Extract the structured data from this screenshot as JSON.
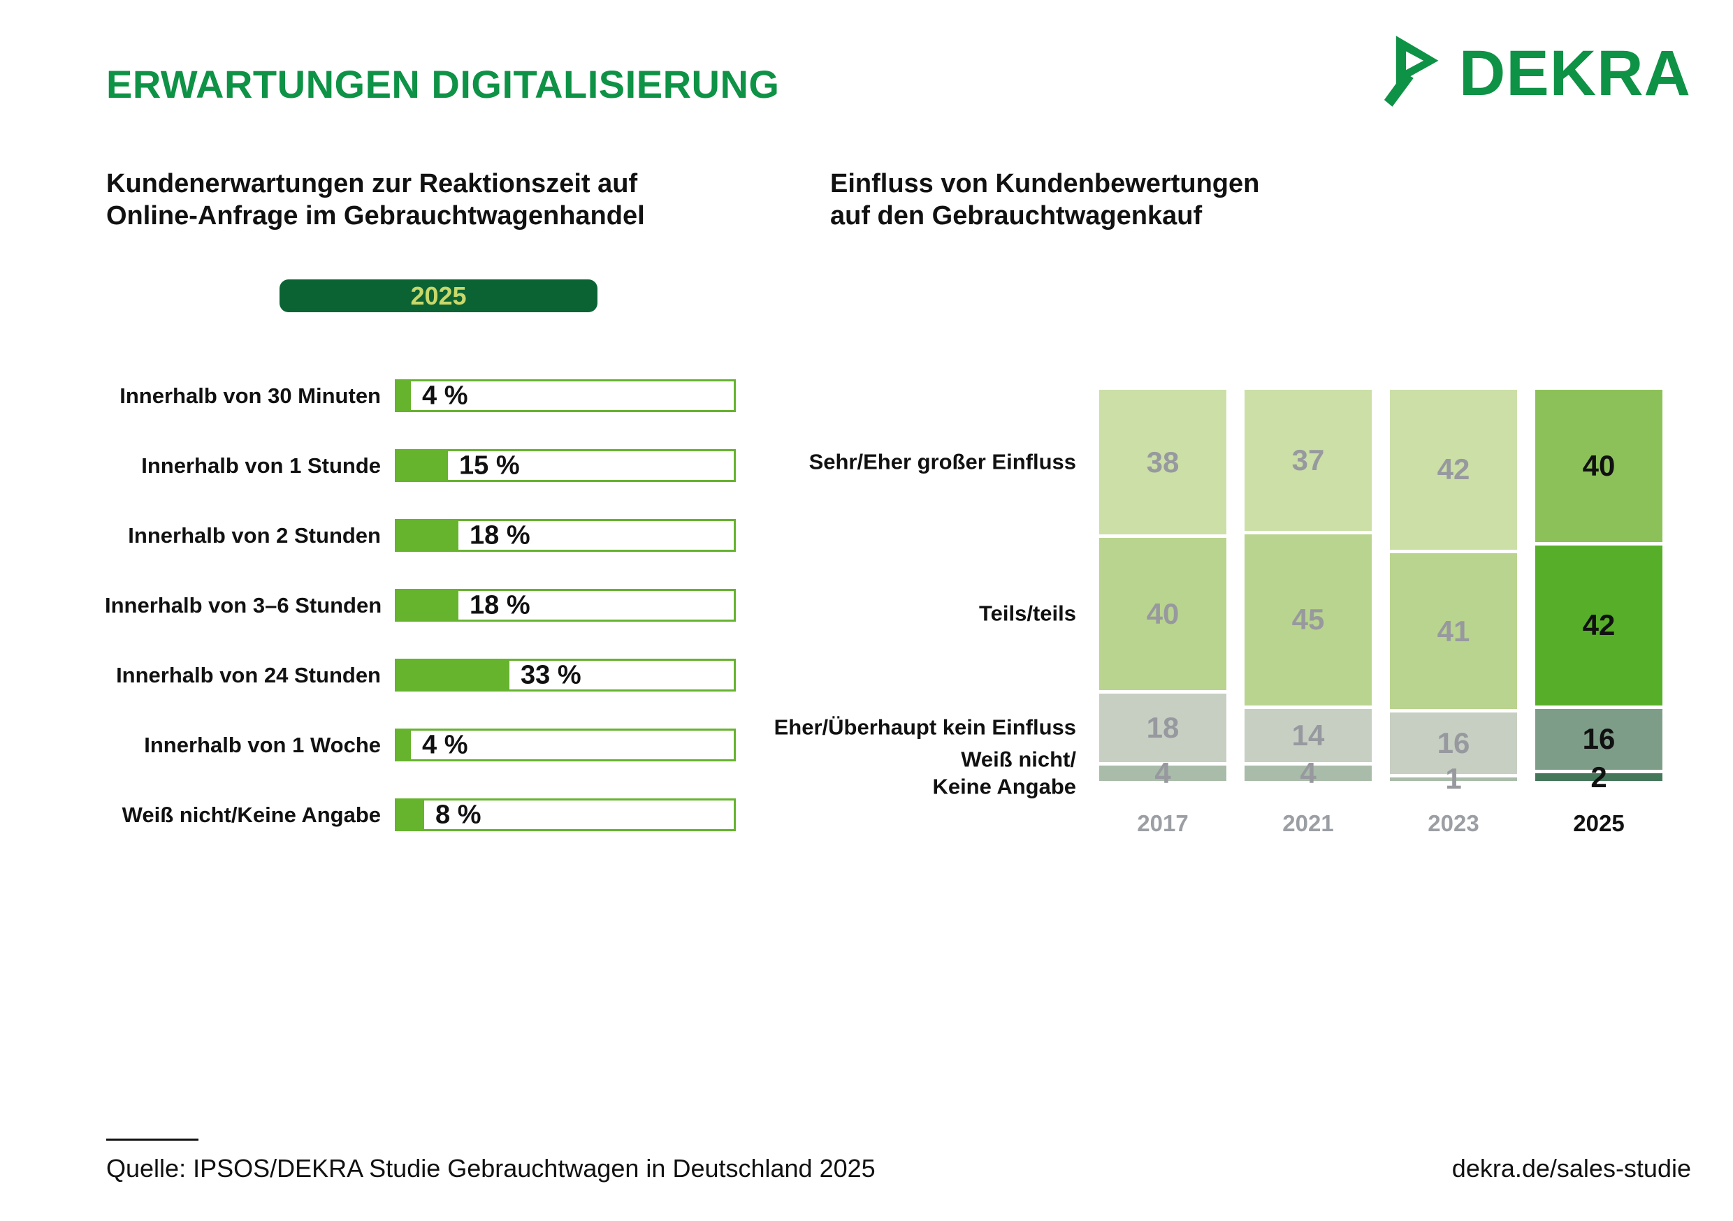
{
  "ui": {
    "header": {
      "title": "ERWARTUNGEN DIGITALISIERUNG",
      "brand": "DEKRA"
    },
    "left_chart": {
      "title_line1": "Kundenerwartungen zur Reaktionszeit auf",
      "title_line2": "Online-Anfrage im Gebrauchtwagenhandel",
      "badge": "2025"
    },
    "right_chart": {
      "title_line1": "Einfluss von Kundenbewertungen",
      "title_line2": "auf den Gebrauchtwagenkauf"
    },
    "footer": {
      "source": "Quelle: IPSOS/DEKRA Studie Gebrauchtwagen in Deutschland 2025",
      "link": "dekra.de/sales-studie"
    },
    "icons": {
      "logo_mark": "dekra-chevron-logo"
    }
  },
  "colors": {
    "brand_green": "#0e9246",
    "bar_green": "#66b32e",
    "badge_bg": "#0b6334",
    "badge_text": "#c9d86a",
    "muted_segments": [
      "#cbdfa7",
      "#b9d48e",
      "#c6cfc2",
      "#a9bca9"
    ],
    "highlight_segments": [
      "#8cc159",
      "#57ae28",
      "#7e9d88",
      "#45775a"
    ],
    "muted_number": "#97999f",
    "muted_year": "#9b9ea3",
    "text_black": "#111111"
  },
  "chart_data": [
    {
      "type": "bar",
      "orientation": "horizontal",
      "title": "Kundenerwartungen zur Reaktionszeit auf Online-Anfrage im Gebrauchtwagenhandel",
      "year_badge": "2025",
      "unit": "%",
      "xlim": [
        0,
        100
      ],
      "categories": [
        "Innerhalb von 30 Minuten",
        "Innerhalb von 1 Stunde",
        "Innerhalb von 2 Stunden",
        "Innerhalb von 3–6 Stunden",
        "Innerhalb von 24 Stunden",
        "Innerhalb von 1 Woche",
        "Weiß nicht/Keine Angabe"
      ],
      "values": [
        4,
        15,
        18,
        18,
        33,
        4,
        8
      ],
      "value_labels": [
        "4 %",
        "15 %",
        "18 %",
        "18 %",
        "33 %",
        "4 %",
        "8 %"
      ]
    },
    {
      "type": "bar",
      "subtype": "stacked-vertical",
      "title": "Einfluss von Kundenbewertungen auf den Gebrauchtwagenkauf",
      "unit": "%",
      "total_per_column": 100,
      "categories": [
        "2017",
        "2021",
        "2023",
        "2025"
      ],
      "highlighted_category": "2025",
      "series": [
        {
          "name": "Sehr/Eher großer Einfluss",
          "values": [
            38,
            37,
            42,
            40
          ]
        },
        {
          "name": "Teils/teils",
          "values": [
            40,
            45,
            41,
            42
          ]
        },
        {
          "name": "Eher/Überhaupt kein Einfluss",
          "values": [
            18,
            14,
            16,
            16
          ]
        },
        {
          "name": "Weiß nicht/\nKeine Angabe",
          "values": [
            4,
            4,
            1,
            2
          ]
        }
      ]
    }
  ]
}
